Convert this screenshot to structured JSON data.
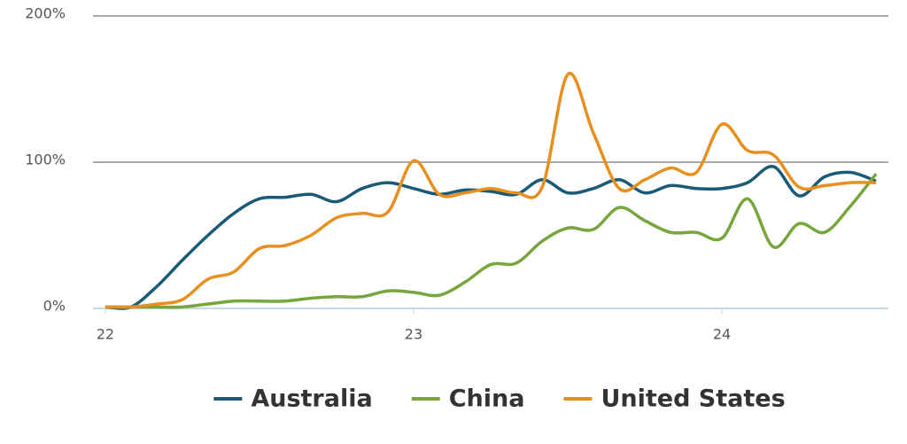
{
  "chart_data": {
    "type": "line",
    "x": [
      22,
      22.083,
      22.167,
      22.25,
      22.333,
      22.417,
      22.5,
      22.583,
      22.667,
      22.75,
      22.833,
      22.917,
      23,
      23.083,
      23.167,
      23.25,
      23.333,
      23.417,
      23.5,
      23.583,
      23.667,
      23.75,
      23.833,
      23.917,
      24,
      24.083,
      24.167,
      24.25,
      24.333,
      24.417,
      24.5
    ],
    "series": [
      {
        "name": "Australia",
        "color": "#1a5a78",
        "values": [
          1,
          1,
          15,
          33,
          50,
          65,
          75,
          76,
          78,
          73,
          82,
          86,
          82,
          78,
          81,
          80,
          78,
          88,
          79,
          82,
          88,
          79,
          84,
          82,
          82,
          86,
          97,
          77,
          90,
          93,
          87
        ]
      },
      {
        "name": "China",
        "color": "#76a63c",
        "values": [
          1,
          1,
          1,
          1,
          3,
          5,
          5,
          5,
          7,
          8,
          8,
          12,
          11,
          9,
          18,
          30,
          31,
          46,
          55,
          54,
          69,
          60,
          52,
          52,
          48,
          75,
          42,
          58,
          52,
          70,
          92
        ]
      },
      {
        "name": "United States",
        "color": "#e8901f",
        "values": [
          1,
          1,
          3,
          6,
          20,
          25,
          41,
          43,
          50,
          62,
          65,
          66,
          101,
          78,
          79,
          82,
          79,
          83,
          160,
          120,
          82,
          88,
          96,
          93,
          126,
          108,
          105,
          83,
          84,
          86,
          86
        ]
      }
    ],
    "xlim": [
      21.96,
      24.54
    ],
    "xticks": [
      22,
      23,
      24
    ],
    "ylim": [
      0,
      200
    ],
    "yticks": [
      {
        "value": 0,
        "label": "0%"
      },
      {
        "value": 100,
        "label": "100%"
      },
      {
        "value": 200,
        "label": "200%"
      }
    ],
    "grid": true
  }
}
